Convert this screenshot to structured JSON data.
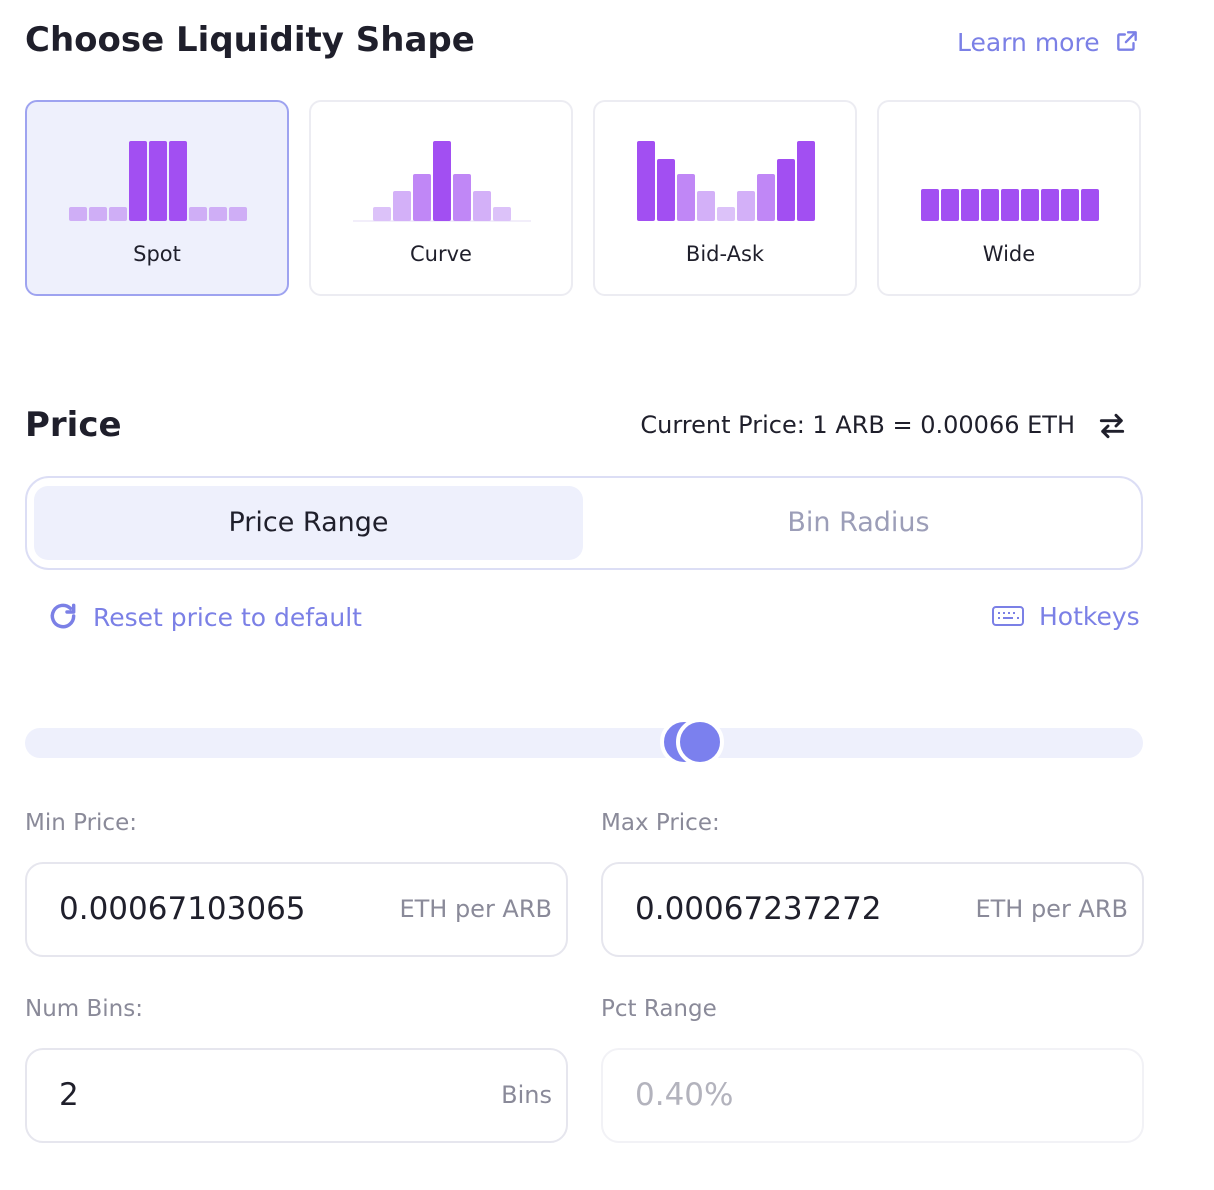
{
  "header": {
    "title": "Choose Liquidity Shape",
    "learn_more": "Learn more"
  },
  "shapes": [
    {
      "label": "Spot",
      "selected": true
    },
    {
      "label": "Curve",
      "selected": false
    },
    {
      "label": "Bid-Ask",
      "selected": false
    },
    {
      "label": "Wide",
      "selected": false
    }
  ],
  "price": {
    "title": "Price",
    "current_price": "Current Price: 1 ARB = 0.00066 ETH"
  },
  "tabs": [
    {
      "label": "Price Range",
      "active": true
    },
    {
      "label": "Bin Radius",
      "active": false
    }
  ],
  "actions": {
    "reset": "Reset price to default",
    "hotkeys": "Hotkeys"
  },
  "fields": [
    {
      "label": "Min Price:",
      "value": "0.00067103065",
      "unit": "ETH per ARB",
      "disabled": false
    },
    {
      "label": "Max Price:",
      "value": "0.00067237272",
      "unit": "ETH per ARB",
      "disabled": false
    },
    {
      "label": "Num Bins:",
      "value": "2",
      "unit": "Bins",
      "disabled": false
    },
    {
      "label": "Pct Range",
      "value": "0.40%",
      "disabled": true
    }
  ]
}
